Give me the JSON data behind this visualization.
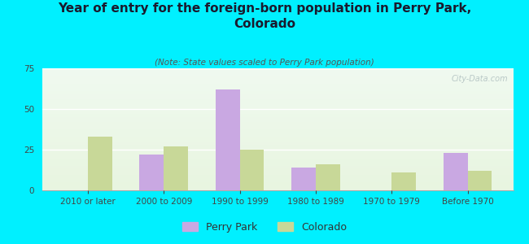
{
  "title": "Year of entry for the foreign-born population in Perry Park,\nColorado",
  "subtitle": "(Note: State values scaled to Perry Park population)",
  "categories": [
    "2010 or later",
    "2000 to 2009",
    "1990 to 1999",
    "1980 to 1989",
    "1970 to 1979",
    "Before 1970"
  ],
  "perry_park": [
    0,
    22,
    62,
    14,
    0,
    23
  ],
  "colorado": [
    33,
    27,
    25,
    16,
    11,
    12
  ],
  "perry_park_color": "#c9a8e2",
  "colorado_color": "#c8d898",
  "bg_color": "#00f0ff",
  "ylim": [
    0,
    75
  ],
  "yticks": [
    0,
    25,
    50,
    75
  ],
  "bar_width": 0.32,
  "title_fontsize": 11,
  "subtitle_fontsize": 7.5,
  "tick_fontsize": 7.5,
  "legend_fontsize": 9,
  "watermark": "City-Data.com"
}
